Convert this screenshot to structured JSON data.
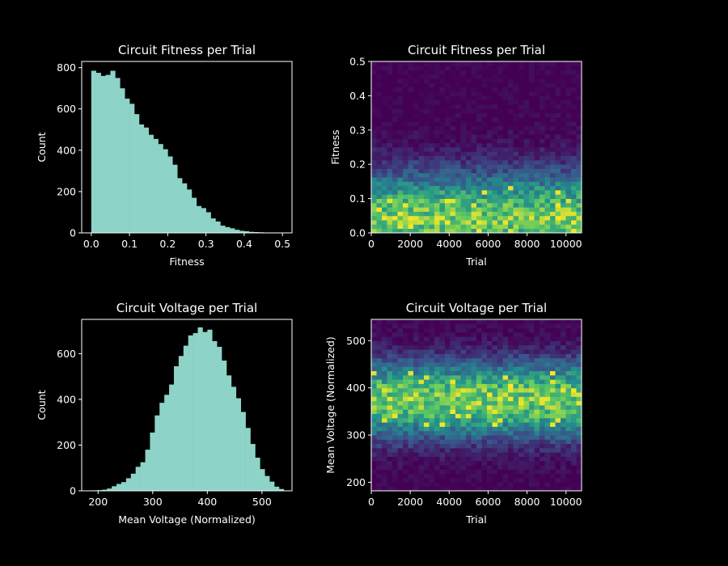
{
  "chart_data": [
    {
      "type": "bar",
      "title": "Circuit Fitness per Trial",
      "xlabel": "Fitness",
      "ylabel": "Count",
      "xlim": [
        -0.025,
        0.525
      ],
      "ylim": [
        0,
        830
      ],
      "xticks": [
        0.0,
        0.1,
        0.2,
        0.3,
        0.4,
        0.5
      ],
      "xtick_labels": [
        "0.0",
        "0.1",
        "0.2",
        "0.3",
        "0.4",
        "0.5"
      ],
      "yticks": [
        0,
        200,
        400,
        600,
        800
      ],
      "bin_edges": [
        0.0,
        0.0125,
        0.025,
        0.0375,
        0.05,
        0.0625,
        0.075,
        0.0875,
        0.1,
        0.1125,
        0.125,
        0.1375,
        0.15,
        0.1625,
        0.175,
        0.1875,
        0.2,
        0.2125,
        0.225,
        0.2375,
        0.25,
        0.2625,
        0.275,
        0.2875,
        0.3,
        0.3125,
        0.325,
        0.3375,
        0.35,
        0.3625,
        0.375,
        0.3875,
        0.4,
        0.4125,
        0.425,
        0.4375,
        0.45,
        0.4625,
        0.475,
        0.4875,
        0.5
      ],
      "values": [
        785,
        775,
        760,
        765,
        785,
        750,
        700,
        650,
        625,
        575,
        525,
        510,
        475,
        455,
        430,
        405,
        370,
        330,
        265,
        240,
        210,
        170,
        130,
        120,
        100,
        70,
        55,
        35,
        28,
        22,
        15,
        10,
        8,
        5,
        4,
        3,
        2,
        1,
        1,
        1
      ],
      "color": "#8dd3c7",
      "background": "#000000"
    },
    {
      "type": "heatmap",
      "title": "Circuit Fitness per Trial",
      "xlabel": "Trial",
      "ylabel": "Fitness",
      "xlim": [
        0,
        10800
      ],
      "ylim": [
        0,
        0.5
      ],
      "xticks": [
        0,
        2000,
        4000,
        6000,
        8000,
        10000
      ],
      "yticks": [
        0.0,
        0.1,
        0.2,
        0.3,
        0.4,
        0.5
      ],
      "ytick_labels": [
        "0.0",
        "0.1",
        "0.2",
        "0.3",
        "0.4",
        "0.5"
      ],
      "x_bins": 40,
      "y_bins": 40,
      "colormap": "viridis",
      "density": {
        "distribution": "half-normal",
        "center": 0.03,
        "spread": 0.1,
        "peak_fraction": 1.0
      }
    },
    {
      "type": "bar",
      "title": "Circuit Voltage per Trial",
      "xlabel": "Mean Voltage (Normalized)",
      "ylabel": "Count",
      "xlim": [
        170,
        555
      ],
      "ylim": [
        0,
        750
      ],
      "xticks": [
        200,
        300,
        400,
        500
      ],
      "yticks": [
        0,
        200,
        400,
        600
      ],
      "bin_edges": [
        190,
        198.75,
        207.5,
        216.25,
        225,
        233.75,
        242.5,
        251.25,
        260,
        268.75,
        277.5,
        286.25,
        295,
        303.75,
        312.5,
        321.25,
        330,
        338.75,
        347.5,
        356.25,
        365,
        373.75,
        382.5,
        391.25,
        400,
        408.75,
        417.5,
        426.25,
        435,
        443.75,
        452.5,
        461.25,
        470,
        478.75,
        487.5,
        496.25,
        505,
        513.75,
        522.5,
        531.25,
        540
      ],
      "values": [
        2,
        3,
        5,
        10,
        20,
        30,
        38,
        55,
        75,
        105,
        125,
        180,
        255,
        330,
        385,
        420,
        465,
        545,
        590,
        635,
        680,
        690,
        715,
        695,
        705,
        655,
        630,
        570,
        505,
        455,
        405,
        345,
        275,
        205,
        145,
        95,
        65,
        40,
        18,
        8
      ],
      "color": "#8dd3c7",
      "background": "#000000"
    },
    {
      "type": "heatmap",
      "title": "Circuit Voltage per Trial",
      "xlabel": "Trial",
      "ylabel": "Mean Voltage (Normalized)",
      "xlim": [
        0,
        10800
      ],
      "ylim": [
        182,
        545
      ],
      "xticks": [
        0,
        2000,
        4000,
        6000,
        8000,
        10000
      ],
      "yticks": [
        200,
        300,
        400,
        500
      ],
      "x_bins": 40,
      "y_bins": 40,
      "colormap": "viridis",
      "density": {
        "distribution": "normal",
        "center": 375,
        "spread": 55,
        "peak_fraction": 1.0
      }
    }
  ]
}
